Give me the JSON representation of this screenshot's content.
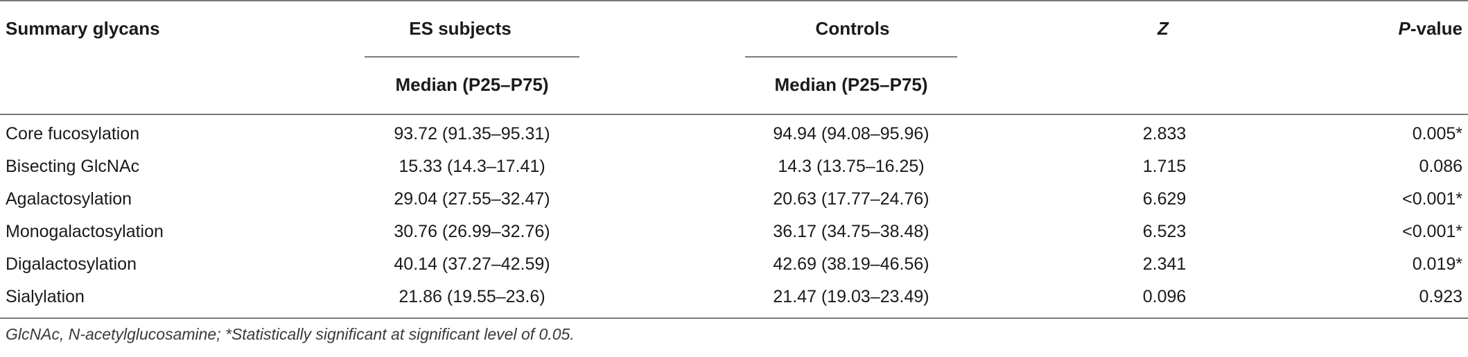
{
  "table": {
    "headers": {
      "col1": "Summary glycans",
      "col2": "ES subjects",
      "col3": "Controls",
      "col4": "Z",
      "col5_italic": "P",
      "col5_rest": "-value",
      "sub2": "Median (P25–P75)",
      "sub3": "Median (P25–P75)"
    },
    "rows": [
      {
        "glycan": "Core fucosylation",
        "es": "93.72 (91.35–95.31)",
        "controls": "94.94 (94.08–95.96)",
        "z": "2.833",
        "p": "0.005*"
      },
      {
        "glycan": "Bisecting GlcNAc",
        "es": "15.33 (14.3–17.41)",
        "controls": "14.3 (13.75–16.25)",
        "z": "1.715",
        "p": "0.086"
      },
      {
        "glycan": "Agalactosylation",
        "es": "29.04 (27.55–32.47)",
        "controls": "20.63 (17.77–24.76)",
        "z": "6.629",
        "p": "<0.001*"
      },
      {
        "glycan": "Monogalactosylation",
        "es": "30.76 (26.99–32.76)",
        "controls": "36.17 (34.75–38.48)",
        "z": "6.523",
        "p": "<0.001*"
      },
      {
        "glycan": "Digalactosylation",
        "es": "40.14 (37.27–42.59)",
        "controls": "42.69 (38.19–46.56)",
        "z": "2.341",
        "p": "0.019*"
      },
      {
        "glycan": "Sialylation",
        "es": "21.86 (19.55–23.6)",
        "controls": "21.47 (19.03–23.49)",
        "z": "0.096",
        "p": "0.923"
      }
    ],
    "footnote": "GlcNAc, N-acetylglucosamine; *Statistically significant at significant level of 0.05."
  }
}
